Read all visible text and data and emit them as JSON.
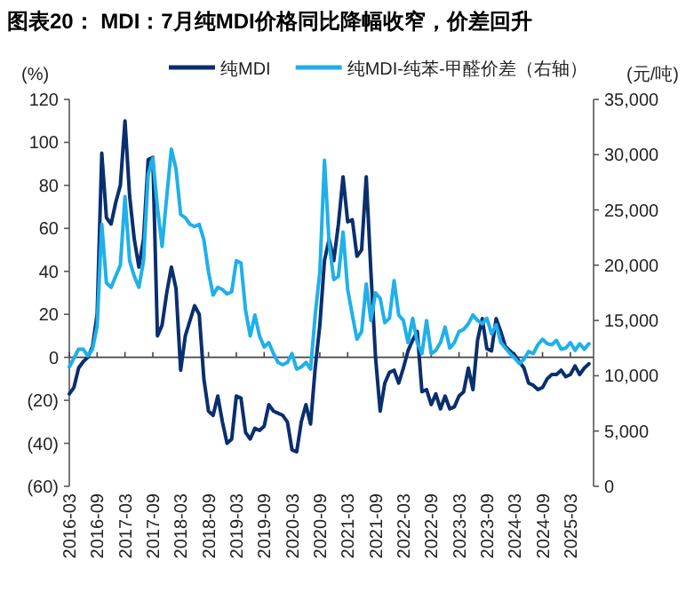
{
  "chart_data": {
    "type": "line",
    "title": "图表20： MDI：7月纯MDI价格同比降幅收窄，价差回升",
    "ylabel": "(%)",
    "y2label": "(元/吨)",
    "legend": "top",
    "marker": "none",
    "line_style": "solid",
    "x": [
      "2016-03",
      "2016-04",
      "2016-05",
      "2016-06",
      "2016-07",
      "2016-08",
      "2016-09",
      "2016-10",
      "2016-11",
      "2016-12",
      "2017-01",
      "2017-02",
      "2017-03",
      "2017-04",
      "2017-05",
      "2017-06",
      "2017-07",
      "2017-08",
      "2017-09",
      "2017-10",
      "2017-11",
      "2017-12",
      "2018-01",
      "2018-02",
      "2018-03",
      "2018-04",
      "2018-05",
      "2018-06",
      "2018-07",
      "2018-08",
      "2018-09",
      "2018-10",
      "2018-11",
      "2018-12",
      "2019-01",
      "2019-02",
      "2019-03",
      "2019-04",
      "2019-05",
      "2019-06",
      "2019-07",
      "2019-08",
      "2019-09",
      "2019-10",
      "2019-11",
      "2019-12",
      "2020-01",
      "2020-02",
      "2020-03",
      "2020-04",
      "2020-05",
      "2020-06",
      "2020-07",
      "2020-08",
      "2020-09",
      "2020-10",
      "2020-11",
      "2020-12",
      "2021-01",
      "2021-02",
      "2021-03",
      "2021-04",
      "2021-05",
      "2021-06",
      "2021-07",
      "2021-08",
      "2021-09",
      "2021-10",
      "2021-11",
      "2021-12",
      "2022-01",
      "2022-02",
      "2022-03",
      "2022-04",
      "2022-05",
      "2022-06",
      "2022-07",
      "2022-08",
      "2022-09",
      "2022-10",
      "2022-11",
      "2022-12",
      "2023-01",
      "2023-02",
      "2023-03",
      "2023-04",
      "2023-05",
      "2023-06",
      "2023-07",
      "2023-08",
      "2023-09",
      "2023-10",
      "2023-11",
      "2023-12",
      "2024-01",
      "2024-02",
      "2024-03",
      "2024-04",
      "2024-05",
      "2024-06",
      "2024-07",
      "2024-08",
      "2024-09",
      "2024-10",
      "2024-11",
      "2024-12",
      "2025-01",
      "2025-02",
      "2025-03",
      "2025-04",
      "2025-05",
      "2025-06",
      "2025-07"
    ],
    "series": [
      {
        "name": "纯MDI",
        "color": "#0a2f6e",
        "values": [
          -17,
          -14,
          -5,
          -2,
          0,
          5,
          20,
          95,
          65,
          62,
          72,
          80,
          110,
          75,
          55,
          42,
          55,
          92,
          93,
          10,
          15,
          30,
          42,
          32,
          -6,
          10,
          17,
          24,
          20,
          -10,
          -25,
          -27,
          -18,
          -30,
          -40,
          -38,
          -18,
          -19,
          -35,
          -38,
          -33,
          -34,
          -32,
          -22,
          -25,
          -26,
          -27,
          -30,
          -43,
          -44,
          -30,
          -22,
          -31,
          -5,
          15,
          45,
          55,
          45,
          62,
          84,
          63,
          64,
          47,
          50,
          84,
          40,
          0,
          -25,
          -12,
          -7,
          -6,
          -12,
          -5,
          3,
          8,
          12,
          -16,
          -15,
          -22,
          -17,
          -24,
          -18,
          -24,
          -23,
          -18,
          -16,
          -5,
          -15,
          8,
          18,
          4,
          3,
          18,
          12,
          5,
          3,
          1,
          -2,
          -5,
          -12,
          -13,
          -15,
          -14,
          -10,
          -8,
          -8,
          -6,
          -9,
          -8,
          -4,
          -8,
          -5,
          -3
        ]
      },
      {
        "name": "纯MDI-纯苯-甲醛价差（右轴）",
        "color": "#1fb0ea",
        "axis": "y2",
        "values": [
          10800,
          11600,
          12400,
          12400,
          11800,
          12400,
          14500,
          23700,
          18400,
          18000,
          19000,
          20000,
          26200,
          20400,
          19000,
          18000,
          20400,
          28200,
          29700,
          25200,
          21700,
          26200,
          30500,
          28700,
          24600,
          24300,
          23700,
          23500,
          23700,
          22300,
          19400,
          17300,
          18000,
          17800,
          17400,
          17600,
          20400,
          20200,
          15900,
          13600,
          15500,
          13600,
          12600,
          13000,
          12000,
          11200,
          11000,
          11200,
          12000,
          10600,
          10800,
          11200,
          10600,
          15500,
          19400,
          29500,
          22000,
          18700,
          19000,
          23000,
          17800,
          15500,
          13300,
          14000,
          18300,
          15000,
          17500,
          17000,
          14800,
          15200,
          18600,
          15500,
          15000,
          13000,
          15200,
          13000,
          12000,
          15000,
          12000,
          12300,
          13000,
          14400,
          12500,
          13000,
          14000,
          14200,
          14700,
          15500,
          15000,
          14700,
          15200,
          13800,
          14600,
          13000,
          12500,
          12000,
          11600,
          11100,
          11500,
          12200,
          12000,
          12800,
          13300,
          12900,
          12800,
          13200,
          12400,
          12500,
          13000,
          12300,
          12900,
          12400,
          12900
        ]
      }
    ],
    "xlim": [
      "2016-03",
      "2025-08"
    ],
    "xticks": [
      "2016-03",
      "2016-09",
      "2017-03",
      "2017-09",
      "2018-03",
      "2018-09",
      "2019-03",
      "2019-09",
      "2020-03",
      "2020-09",
      "2021-03",
      "2021-09",
      "2022-03",
      "2022-09",
      "2023-03",
      "2023-09",
      "2024-03",
      "2024-09",
      "2025-03"
    ],
    "ylim": [
      -60,
      120
    ],
    "yticks": [
      {
        "value": -60,
        "label": "(60)"
      },
      {
        "value": -40,
        "label": "(40)"
      },
      {
        "value": -20,
        "label": "(20)"
      },
      0,
      20,
      40,
      60,
      80,
      100,
      120
    ],
    "y2lim": [
      0,
      35000
    ],
    "y2ticks": [
      0,
      {
        "value": 5000,
        "label": "5,000"
      },
      {
        "value": 10000,
        "label": "10,000"
      },
      {
        "value": 15000,
        "label": "15,000"
      },
      {
        "value": 20000,
        "label": "20,000"
      },
      {
        "value": 25000,
        "label": "25,000"
      },
      {
        "value": 30000,
        "label": "30,000"
      },
      {
        "value": 35000,
        "label": "35,000"
      }
    ]
  }
}
